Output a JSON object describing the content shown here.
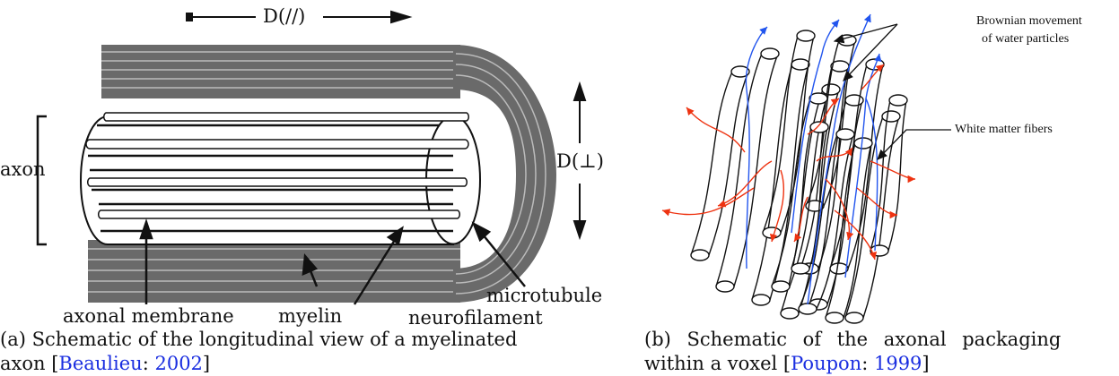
{
  "panel_a": {
    "labels": {
      "d_parallel": "D(//)",
      "d_perp": "D(⊥)",
      "axon": "axon",
      "axonal_membrane": "axonal membrane",
      "myelin": "myelin",
      "neurofilament": "neurofilament",
      "microtubule": "microtubule"
    },
    "caption": {
      "prefix": "(a) Schematic of the longitudinal view of a myelinated",
      "line2_prefix": "axon [",
      "cite_author": "Beaulieu",
      "cite_sep": ": ",
      "cite_year": "2002",
      "suffix": "]"
    }
  },
  "panel_b": {
    "labels": {
      "brownian_1": "Brownian movement",
      "brownian_2": "of water particles",
      "white_matter": "White matter fibers"
    },
    "caption": {
      "prefix": "(b) Schematic of the axonal packaging",
      "line2_prefix": "within a voxel [",
      "cite_author": "Poupon",
      "cite_sep": ": ",
      "cite_year": "1999",
      "suffix": "]"
    },
    "colors": {
      "blue_path": "#2255ee",
      "red_path": "#ee3311"
    }
  }
}
